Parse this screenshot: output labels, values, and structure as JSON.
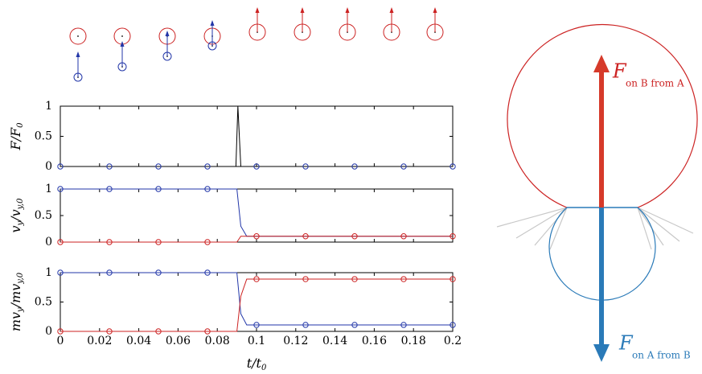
{
  "chart_data": [
    {
      "type": "line",
      "ylabel": [
        {
          "text": "F/F"
        },
        {
          "text": "0",
          "sub": true
        }
      ],
      "xlim": [
        0,
        0.2
      ],
      "xticks": [
        0,
        0.02,
        0.04,
        0.06,
        0.08,
        0.1,
        0.12,
        0.14,
        0.16,
        0.18,
        0.2
      ],
      "xtick_labels": false,
      "ylim": [
        0,
        1
      ],
      "yticks": [
        0,
        0.5,
        1
      ],
      "series": [
        {
          "color": "#000000",
          "marker": false,
          "x": [
            0,
            0.0895,
            0.0905,
            0.092,
            0.2
          ],
          "values": [
            0,
            0,
            1,
            0,
            0
          ]
        },
        {
          "color": "#2236a8",
          "marker": true,
          "x": [
            0,
            0.025,
            0.05,
            0.075,
            0.1,
            0.125,
            0.15,
            0.175,
            0.2
          ],
          "values": [
            0,
            0,
            0,
            0,
            0,
            0,
            0,
            0,
            0
          ]
        }
      ]
    },
    {
      "type": "line",
      "ylabel": [
        {
          "text": "v"
        },
        {
          "text": "y",
          "sub": true
        },
        {
          "text": "/v"
        },
        {
          "text": "y,0",
          "sub": true
        }
      ],
      "xlim": [
        0,
        0.2
      ],
      "xticks": [
        0,
        0.02,
        0.04,
        0.06,
        0.08,
        0.1,
        0.12,
        0.14,
        0.16,
        0.18,
        0.2
      ],
      "xtick_labels": false,
      "ylim": [
        0,
        1
      ],
      "yticks": [
        0,
        0.5,
        1
      ],
      "series": [
        {
          "color": "#2236a8",
          "marker": false,
          "x": [
            0,
            0.09,
            0.092,
            0.095,
            0.2
          ],
          "values": [
            1,
            1,
            0.3,
            0.11,
            0.11
          ]
        },
        {
          "color": "#cc2222",
          "marker": false,
          "x": [
            0,
            0.09,
            0.092,
            0.2
          ],
          "values": [
            0,
            0,
            0.11,
            0.11
          ]
        },
        {
          "color": "#2236a8",
          "marker": true,
          "x": [
            0,
            0.025,
            0.05,
            0.075
          ],
          "values": [
            1,
            1,
            1,
            1
          ]
        },
        {
          "color": "#cc2222",
          "marker": true,
          "x": [
            0,
            0.025,
            0.05,
            0.075,
            0.1,
            0.125,
            0.15,
            0.175,
            0.2
          ],
          "values": [
            0,
            0,
            0,
            0,
            0.11,
            0.11,
            0.11,
            0.11,
            0.11
          ]
        }
      ]
    },
    {
      "type": "line",
      "ylabel": [
        {
          "text": "mv"
        },
        {
          "text": "y",
          "sub": true
        },
        {
          "text": "/mv"
        },
        {
          "text": "y,0",
          "sub": true
        }
      ],
      "xlabel": [
        {
          "text": "t/t"
        },
        {
          "text": "0",
          "sub": true
        }
      ],
      "xlim": [
        0,
        0.2
      ],
      "xticks": [
        0,
        0.02,
        0.04,
        0.06,
        0.08,
        0.1,
        0.12,
        0.14,
        0.16,
        0.18,
        0.2
      ],
      "xtick_labels": true,
      "ylim": [
        0,
        1
      ],
      "yticks": [
        0,
        0.5,
        1
      ],
      "series": [
        {
          "color": "#2236a8",
          "marker": false,
          "x": [
            0,
            0.09,
            0.092,
            0.095,
            0.2
          ],
          "values": [
            1,
            1,
            0.3,
            0.11,
            0.11
          ]
        },
        {
          "color": "#cc2222",
          "marker": false,
          "x": [
            0,
            0.09,
            0.092,
            0.095,
            0.2
          ],
          "values": [
            0,
            0,
            0.6,
            0.89,
            0.89
          ]
        },
        {
          "color": "#2236a8",
          "marker": true,
          "x": [
            0,
            0.025,
            0.05,
            0.075,
            0.1,
            0.125,
            0.15,
            0.175,
            0.2
          ],
          "values": [
            1,
            1,
            1,
            1,
            0.11,
            0.11,
            0.11,
            0.11,
            0.11
          ]
        },
        {
          "color": "#cc2222",
          "marker": true,
          "x": [
            0,
            0.025,
            0.05,
            0.075,
            0.1,
            0.125,
            0.15,
            0.175,
            0.2
          ],
          "values": [
            0,
            0,
            0,
            0,
            0.89,
            0.89,
            0.89,
            0.89,
            0.89
          ]
        }
      ]
    }
  ],
  "diagram": {
    "force_on_b": {
      "main": "F",
      "sub": "on B from A"
    },
    "force_on_a": {
      "main": "F",
      "sub": "on A from B"
    }
  }
}
